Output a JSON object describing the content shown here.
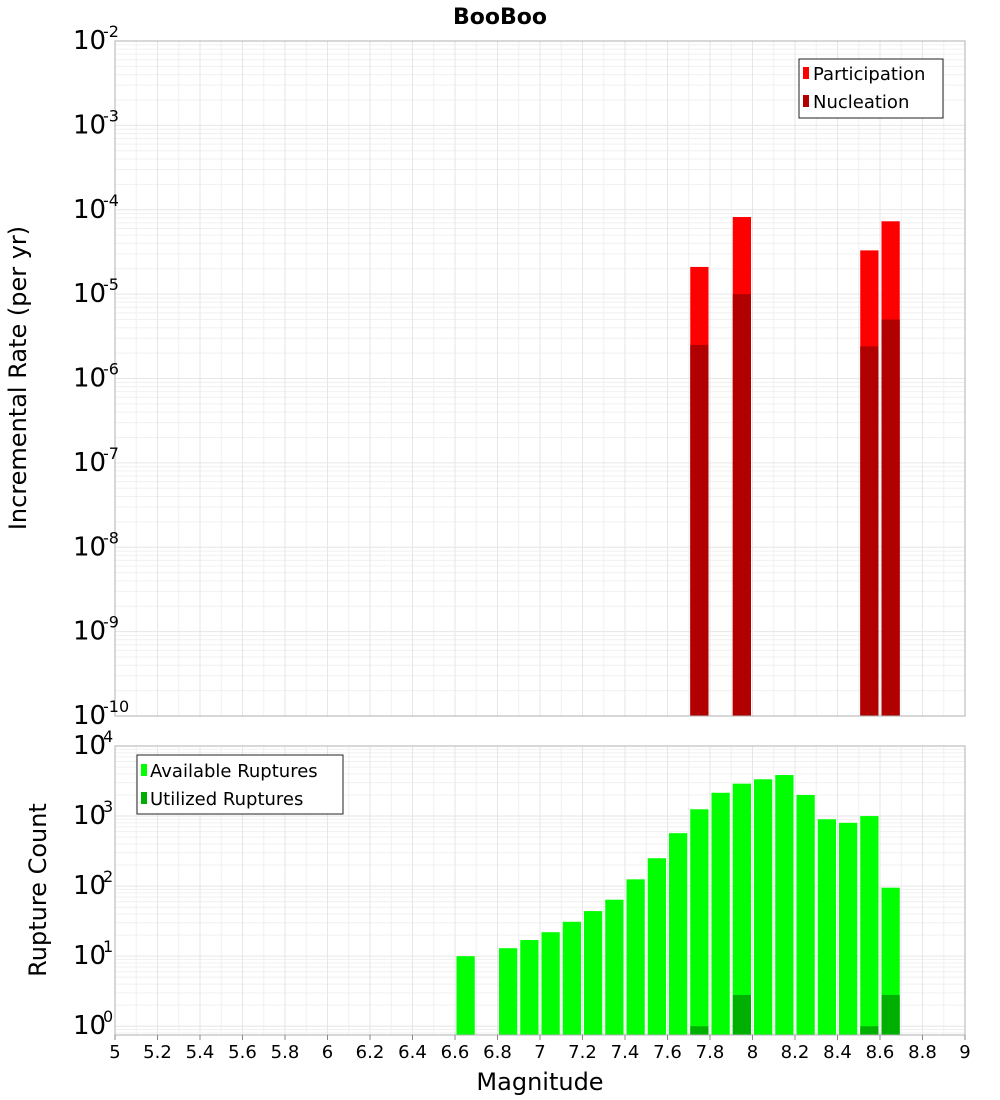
{
  "chart_data": [
    {
      "type": "bar",
      "title": "BooBoo",
      "ylabel": "Incremental Rate (per yr)",
      "xlabel": "",
      "yscale": "log",
      "ylim": [
        1e-10,
        0.01
      ],
      "xlim": [
        5,
        9
      ],
      "y_ticks_exponents": [
        -10,
        -9,
        -8,
        -7,
        -6,
        -5,
        -4,
        -3,
        -2
      ],
      "bar_width": 0.1,
      "legend_position": "top-right",
      "series": [
        {
          "name": "Participation",
          "color": "#ff0000",
          "x": [
            7.75,
            7.95,
            8.55,
            8.65
          ],
          "values": [
            2.1e-05,
            8.2e-05,
            3.3e-05,
            7.3e-05
          ]
        },
        {
          "name": "Nucleation",
          "color": "#b00000",
          "x": [
            7.75,
            7.95,
            8.55,
            8.65
          ],
          "values": [
            2.5e-06,
            1e-05,
            2.4e-06,
            5e-06
          ]
        }
      ]
    },
    {
      "type": "bar",
      "title": "",
      "ylabel": "Rupture Count",
      "xlabel": "Magnitude",
      "yscale": "log",
      "ylim": [
        0.75,
        10000
      ],
      "xlim": [
        5,
        9
      ],
      "y_ticks_exponents": [
        0,
        1,
        2,
        3,
        4
      ],
      "x_ticks": [
        "5",
        "5.2",
        "5.4",
        "5.6",
        "5.8",
        "6",
        "6.2",
        "6.4",
        "6.6",
        "6.8",
        "7",
        "7.2",
        "7.4",
        "7.6",
        "7.8",
        "8",
        "8.2",
        "8.4",
        "8.6",
        "8.8",
        "9"
      ],
      "bar_width": 0.1,
      "legend_position": "top-left",
      "series": [
        {
          "name": "Available Ruptures",
          "color": "#00ff00",
          "x": [
            6.65,
            6.85,
            6.95,
            7.05,
            7.15,
            7.25,
            7.35,
            7.45,
            7.55,
            7.65,
            7.75,
            7.85,
            7.95,
            8.05,
            8.15,
            8.25,
            8.35,
            8.45,
            8.55,
            8.65
          ],
          "values": [
            10,
            13,
            17,
            22,
            31,
            44,
            64,
            125,
            250,
            570,
            1250,
            2150,
            2900,
            3350,
            3850,
            2000,
            900,
            800,
            1000,
            95
          ]
        },
        {
          "name": "Utilized Ruptures",
          "color": "#00b000",
          "x": [
            7.75,
            7.95,
            8.55,
            8.65
          ],
          "values": [
            1,
            2.8,
            1,
            2.8
          ]
        }
      ]
    }
  ]
}
